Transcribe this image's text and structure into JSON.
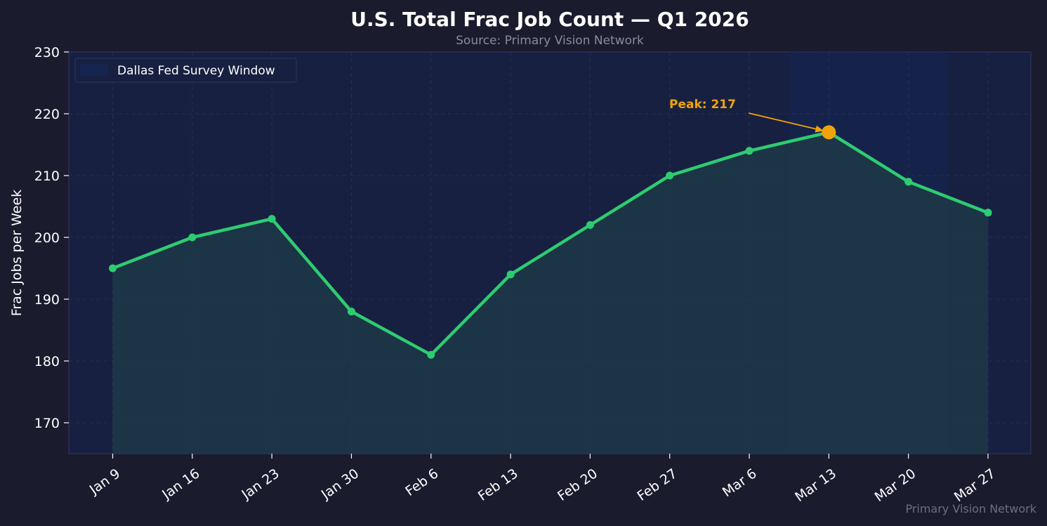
{
  "title": "U.S. Total Frac Job Count — Q1 2026",
  "subtitle": "Source: Primary Vision Network",
  "watermark": "Primary Vision Network",
  "colors": {
    "background": "#1b1b2e",
    "plot_background": "#172040",
    "survey_window": "#162550",
    "line": "#2ecc71",
    "fill": "#1d3a48",
    "peak": "#f0a30a",
    "grid": "#2a3560"
  },
  "chart_data": {
    "type": "line",
    "categories": [
      "Jan 9",
      "Jan 16",
      "Jan 23",
      "Jan 30",
      "Feb 6",
      "Feb 13",
      "Feb 20",
      "Feb 27",
      "Mar 6",
      "Mar 13",
      "Mar 20",
      "Mar 27"
    ],
    "series": [
      {
        "values": [
          195,
          200,
          203,
          188,
          181,
          194,
          202,
          210,
          214,
          217,
          209,
          204
        ]
      }
    ],
    "ylabel": "Frac Jobs per Week",
    "ylim": [
      165,
      230
    ],
    "yticks": [
      170,
      180,
      190,
      200,
      210,
      220,
      230
    ],
    "grid": true,
    "area_fill": true,
    "legend": {
      "position": "top-left",
      "entries": [
        "Dallas Fed Survey Window"
      ]
    },
    "shaded_region": {
      "label": "Dallas Fed Survey Window",
      "from": "Mar 13",
      "to": "Mar 20"
    },
    "annotation": {
      "text": "Peak: 217",
      "category": "Mar 13",
      "value": 217
    }
  }
}
